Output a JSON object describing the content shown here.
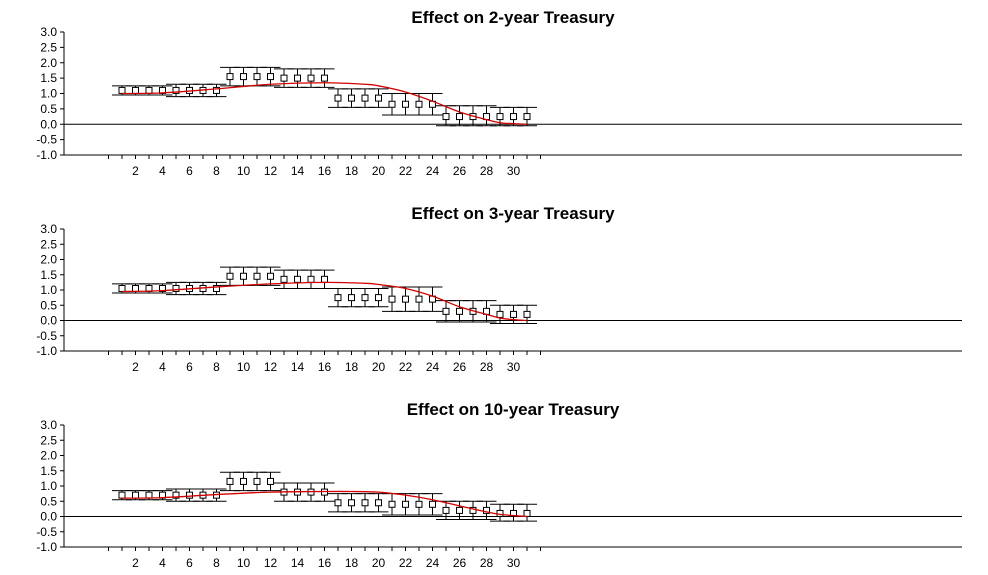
{
  "chart_data": [
    {
      "type": "line",
      "title": "Effect on 2-year Treasury",
      "xlabel": "",
      "ylabel": "",
      "xlim": [
        0,
        32
      ],
      "ylim": [
        -1.0,
        3.0
      ],
      "x_ticks": [
        2,
        4,
        6,
        8,
        10,
        12,
        14,
        16,
        18,
        20,
        22,
        24,
        26,
        28,
        30
      ],
      "y_ticks": [
        3.0,
        2.5,
        2.0,
        1.5,
        1.0,
        0.5,
        0.0,
        -0.5,
        -1.0
      ],
      "y_tick_labels": [
        "3.0",
        "2.5",
        "2.0",
        "1.5",
        "1.0",
        "0.5",
        "0.0",
        "-0.5",
        "-1.0"
      ],
      "zero_line": true,
      "grid": false,
      "estimates": {
        "x": [
          1,
          2,
          3,
          4,
          5,
          6,
          7,
          8,
          9,
          10,
          11,
          12,
          13,
          14,
          15,
          16,
          17,
          18,
          19,
          20,
          21,
          22,
          23,
          24,
          25,
          26,
          27,
          28,
          29,
          30,
          31
        ],
        "point": [
          1.1,
          1.1,
          1.1,
          1.1,
          1.1,
          1.1,
          1.1,
          1.1,
          1.55,
          1.55,
          1.55,
          1.55,
          1.5,
          1.5,
          1.5,
          1.5,
          0.85,
          0.85,
          0.85,
          0.85,
          0.65,
          0.65,
          0.65,
          0.65,
          0.25,
          0.25,
          0.25,
          0.25,
          0.25,
          0.25,
          0.25
        ],
        "lower": [
          0.95,
          0.95,
          0.95,
          0.95,
          0.9,
          0.9,
          0.9,
          0.9,
          1.25,
          1.25,
          1.25,
          1.25,
          1.2,
          1.2,
          1.2,
          1.2,
          0.55,
          0.55,
          0.55,
          0.55,
          0.3,
          0.3,
          0.3,
          0.3,
          -0.05,
          -0.05,
          -0.05,
          -0.05,
          -0.05,
          -0.05,
          -0.05
        ],
        "upper": [
          1.25,
          1.25,
          1.25,
          1.25,
          1.3,
          1.3,
          1.3,
          1.3,
          1.85,
          1.85,
          1.85,
          1.85,
          1.8,
          1.8,
          1.8,
          1.8,
          1.15,
          1.15,
          1.15,
          1.15,
          1.0,
          1.0,
          1.0,
          1.0,
          0.6,
          0.6,
          0.6,
          0.6,
          0.55,
          0.55,
          0.55
        ]
      },
      "fit_curve": {
        "color": "#d40000",
        "x": [
          1,
          4,
          8,
          12,
          16,
          19,
          20,
          22,
          24,
          26,
          28,
          29,
          30,
          31
        ],
        "y": [
          1.0,
          1.02,
          1.15,
          1.3,
          1.35,
          1.3,
          1.25,
          1.05,
          0.75,
          0.4,
          0.15,
          0.05,
          0.02,
          0.0
        ]
      }
    },
    {
      "type": "line",
      "title": "Effect on 3-year Treasury",
      "xlabel": "",
      "ylabel": "",
      "xlim": [
        0,
        32
      ],
      "ylim": [
        -1.0,
        3.0
      ],
      "x_ticks": [
        2,
        4,
        6,
        8,
        10,
        12,
        14,
        16,
        18,
        20,
        22,
        24,
        26,
        28,
        30
      ],
      "y_ticks": [
        3.0,
        2.5,
        2.0,
        1.5,
        1.0,
        0.5,
        0.0,
        -0.5,
        -1.0
      ],
      "y_tick_labels": [
        "3.0",
        "2.5",
        "2.0",
        "1.5",
        "1.0",
        "0.5",
        "0.0",
        "-0.5",
        "-1.0"
      ],
      "zero_line": true,
      "grid": false,
      "estimates": {
        "x": [
          1,
          2,
          3,
          4,
          5,
          6,
          7,
          8,
          9,
          10,
          11,
          12,
          13,
          14,
          15,
          16,
          17,
          18,
          19,
          20,
          21,
          22,
          23,
          24,
          25,
          26,
          27,
          28,
          29,
          30,
          31
        ],
        "point": [
          1.05,
          1.05,
          1.05,
          1.05,
          1.05,
          1.05,
          1.05,
          1.05,
          1.45,
          1.45,
          1.45,
          1.45,
          1.35,
          1.35,
          1.35,
          1.35,
          0.75,
          0.75,
          0.75,
          0.75,
          0.7,
          0.7,
          0.7,
          0.7,
          0.3,
          0.3,
          0.3,
          0.3,
          0.2,
          0.2,
          0.2
        ],
        "lower": [
          0.9,
          0.9,
          0.9,
          0.9,
          0.85,
          0.85,
          0.85,
          0.85,
          1.15,
          1.15,
          1.15,
          1.15,
          1.05,
          1.05,
          1.05,
          1.05,
          0.45,
          0.45,
          0.45,
          0.45,
          0.3,
          0.3,
          0.3,
          0.3,
          -0.05,
          -0.05,
          -0.05,
          -0.05,
          -0.1,
          -0.1,
          -0.1
        ],
        "upper": [
          1.2,
          1.2,
          1.2,
          1.2,
          1.25,
          1.25,
          1.25,
          1.25,
          1.75,
          1.75,
          1.75,
          1.75,
          1.65,
          1.65,
          1.65,
          1.65,
          1.05,
          1.05,
          1.05,
          1.05,
          1.1,
          1.1,
          1.1,
          1.1,
          0.65,
          0.65,
          0.65,
          0.65,
          0.5,
          0.5,
          0.5
        ]
      },
      "fit_curve": {
        "color": "#d40000",
        "x": [
          1,
          4,
          8,
          12,
          16,
          19,
          20,
          22,
          24,
          26,
          28,
          29,
          30,
          31
        ],
        "y": [
          0.95,
          0.98,
          1.1,
          1.2,
          1.25,
          1.22,
          1.18,
          1.05,
          0.8,
          0.45,
          0.2,
          0.08,
          0.03,
          0.0
        ]
      }
    },
    {
      "type": "line",
      "title": "Effect on 10-year Treasury",
      "xlabel": "",
      "ylabel": "",
      "xlim": [
        0,
        32
      ],
      "ylim": [
        -1.0,
        3.0
      ],
      "x_ticks": [
        2,
        4,
        6,
        8,
        10,
        12,
        14,
        16,
        18,
        20,
        22,
        24,
        26,
        28,
        30
      ],
      "y_ticks": [
        3.0,
        2.5,
        2.0,
        1.5,
        1.0,
        0.5,
        0.0,
        -0.5,
        -1.0
      ],
      "y_tick_labels": [
        "3.0",
        "2.5",
        "2.0",
        "1.5",
        "1.0",
        "0.5",
        "0.0",
        "-0.5",
        "-1.0"
      ],
      "zero_line": true,
      "grid": false,
      "estimates": {
        "x": [
          1,
          2,
          3,
          4,
          5,
          6,
          7,
          8,
          9,
          10,
          11,
          12,
          13,
          14,
          15,
          16,
          17,
          18,
          19,
          20,
          21,
          22,
          23,
          24,
          25,
          26,
          27,
          28,
          29,
          30,
          31
        ],
        "point": [
          0.7,
          0.7,
          0.7,
          0.7,
          0.7,
          0.7,
          0.7,
          0.7,
          1.15,
          1.15,
          1.15,
          1.15,
          0.8,
          0.8,
          0.8,
          0.8,
          0.45,
          0.45,
          0.45,
          0.45,
          0.4,
          0.4,
          0.4,
          0.4,
          0.2,
          0.2,
          0.2,
          0.2,
          0.1,
          0.1,
          0.1
        ],
        "lower": [
          0.55,
          0.55,
          0.55,
          0.55,
          0.5,
          0.5,
          0.5,
          0.5,
          0.85,
          0.85,
          0.85,
          0.85,
          0.5,
          0.5,
          0.5,
          0.5,
          0.15,
          0.15,
          0.15,
          0.15,
          0.05,
          0.05,
          0.05,
          0.05,
          -0.1,
          -0.1,
          -0.1,
          -0.1,
          -0.15,
          -0.15,
          -0.15
        ],
        "upper": [
          0.85,
          0.85,
          0.85,
          0.85,
          0.9,
          0.9,
          0.9,
          0.9,
          1.45,
          1.45,
          1.45,
          1.45,
          1.1,
          1.1,
          1.1,
          1.1,
          0.75,
          0.75,
          0.75,
          0.75,
          0.75,
          0.75,
          0.75,
          0.75,
          0.5,
          0.5,
          0.5,
          0.5,
          0.4,
          0.4,
          0.4
        ]
      },
      "fit_curve": {
        "color": "#d40000",
        "x": [
          1,
          4,
          8,
          12,
          16,
          18,
          20,
          22,
          24,
          26,
          28,
          29,
          30,
          31
        ],
        "y": [
          0.6,
          0.62,
          0.72,
          0.8,
          0.82,
          0.82,
          0.8,
          0.7,
          0.55,
          0.35,
          0.15,
          0.07,
          0.03,
          0.0
        ]
      }
    }
  ]
}
